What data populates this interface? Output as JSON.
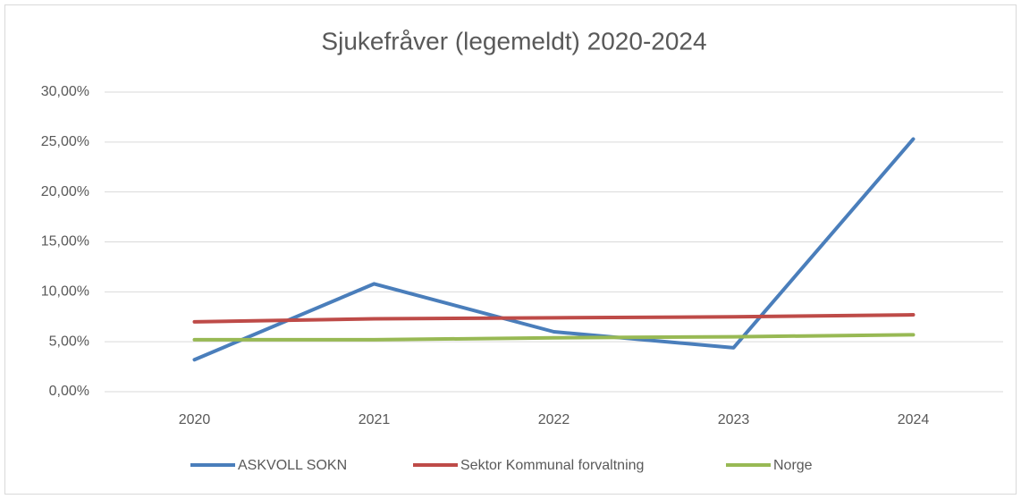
{
  "chart_data": {
    "type": "line",
    "title": "Sjukefråver (legemeldt) 2020-2024",
    "categories": [
      "2020",
      "2021",
      "2022",
      "2023",
      "2024"
    ],
    "series": [
      {
        "name": "ASKVOLL SOKN",
        "color": "#4a7ebb",
        "values": [
          3.2,
          10.8,
          6.0,
          4.4,
          25.3
        ]
      },
      {
        "name": "Sektor Kommunal forvaltning",
        "color": "#be4b48",
        "values": [
          7.0,
          7.3,
          7.4,
          7.5,
          7.7
        ]
      },
      {
        "name": "Norge",
        "color": "#98b954",
        "values": [
          5.2,
          5.2,
          5.4,
          5.5,
          5.7
        ]
      }
    ],
    "ylim": [
      0,
      30
    ],
    "yticks": [
      {
        "value": 0,
        "label": "0,00%"
      },
      {
        "value": 5,
        "label": "5,00%"
      },
      {
        "value": 10,
        "label": "10,00%"
      },
      {
        "value": 15,
        "label": "15,00%"
      },
      {
        "value": 20,
        "label": "20,00%"
      },
      {
        "value": 25,
        "label": "25,00%"
      },
      {
        "value": 30,
        "label": "30,00%"
      }
    ],
    "grid": true,
    "legend": "bottom"
  }
}
